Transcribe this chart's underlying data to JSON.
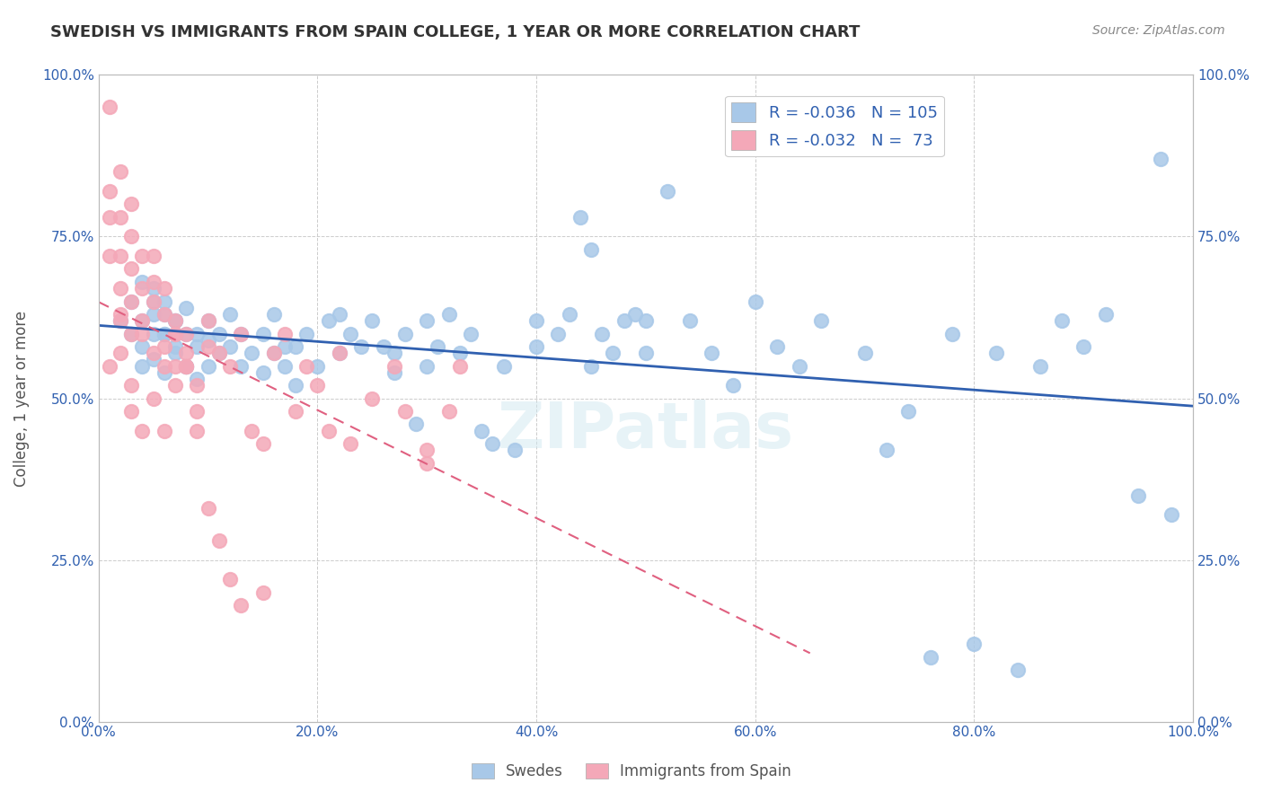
{
  "title": "SWEDISH VS IMMIGRANTS FROM SPAIN COLLEGE, 1 YEAR OR MORE CORRELATION CHART",
  "source": "Source: ZipAtlas.com",
  "ylabel": "College, 1 year or more",
  "xlabel": "",
  "xlim": [
    0.0,
    1.0
  ],
  "ylim": [
    0.0,
    1.0
  ],
  "xticks": [
    0.0,
    0.2,
    0.4,
    0.6,
    0.8,
    1.0
  ],
  "yticks": [
    0.0,
    0.25,
    0.5,
    0.75,
    1.0
  ],
  "xticklabels": [
    "0.0%",
    "20.0%",
    "40.0%",
    "60.0%",
    "80.0%",
    "100.0%"
  ],
  "yticklabels": [
    "0.0%",
    "25.0%",
    "50.0%",
    "75.0%",
    "100.0%"
  ],
  "right_yticklabels": [
    "0.0%",
    "25.0%",
    "50.0%",
    "75.0%",
    "100.0%"
  ],
  "swedes_color": "#a8c8e8",
  "spain_color": "#f4a8b8",
  "swedes_line_color": "#3060b0",
  "spain_line_color": "#e06080",
  "legend_R_swedes": "R = -0.036",
  "legend_N_swedes": "N = 105",
  "legend_R_spain": "R = -0.032",
  "legend_N_spain": "N =  73",
  "watermark": "ZIPatlas",
  "swedes_x": [
    0.02,
    0.03,
    0.03,
    0.04,
    0.04,
    0.04,
    0.04,
    0.05,
    0.05,
    0.05,
    0.06,
    0.06,
    0.06,
    0.07,
    0.07,
    0.08,
    0.08,
    0.08,
    0.09,
    0.09,
    0.1,
    0.1,
    0.1,
    0.11,
    0.11,
    0.12,
    0.12,
    0.13,
    0.13,
    0.14,
    0.15,
    0.15,
    0.16,
    0.16,
    0.17,
    0.17,
    0.18,
    0.18,
    0.19,
    0.2,
    0.21,
    0.22,
    0.22,
    0.23,
    0.24,
    0.25,
    0.26,
    0.27,
    0.27,
    0.28,
    0.29,
    0.3,
    0.3,
    0.31,
    0.32,
    0.33,
    0.34,
    0.35,
    0.36,
    0.37,
    0.38,
    0.4,
    0.4,
    0.42,
    0.43,
    0.44,
    0.45,
    0.45,
    0.46,
    0.47,
    0.48,
    0.49,
    0.5,
    0.5,
    0.52,
    0.54,
    0.56,
    0.58,
    0.6,
    0.62,
    0.64,
    0.66,
    0.7,
    0.72,
    0.74,
    0.76,
    0.78,
    0.8,
    0.82,
    0.84,
    0.86,
    0.88,
    0.9,
    0.92,
    0.95,
    0.97,
    0.98,
    0.05,
    0.05,
    0.06,
    0.06,
    0.07,
    0.07,
    0.08,
    0.09
  ],
  "swedes_y": [
    0.62,
    0.6,
    0.65,
    0.58,
    0.62,
    0.55,
    0.68,
    0.6,
    0.56,
    0.63,
    0.54,
    0.6,
    0.65,
    0.57,
    0.62,
    0.55,
    0.6,
    0.64,
    0.58,
    0.53,
    0.59,
    0.62,
    0.55,
    0.6,
    0.57,
    0.63,
    0.58,
    0.55,
    0.6,
    0.57,
    0.54,
    0.6,
    0.57,
    0.63,
    0.58,
    0.55,
    0.52,
    0.58,
    0.6,
    0.55,
    0.62,
    0.57,
    0.63,
    0.6,
    0.58,
    0.62,
    0.58,
    0.57,
    0.54,
    0.6,
    0.46,
    0.55,
    0.62,
    0.58,
    0.63,
    0.57,
    0.6,
    0.45,
    0.43,
    0.55,
    0.42,
    0.58,
    0.62,
    0.6,
    0.63,
    0.78,
    0.73,
    0.55,
    0.6,
    0.57,
    0.62,
    0.63,
    0.62,
    0.57,
    0.82,
    0.62,
    0.57,
    0.52,
    0.65,
    0.58,
    0.55,
    0.62,
    0.57,
    0.42,
    0.48,
    0.1,
    0.6,
    0.12,
    0.57,
    0.08,
    0.55,
    0.62,
    0.58,
    0.63,
    0.35,
    0.87,
    0.32,
    0.67,
    0.65,
    0.63,
    0.6,
    0.58,
    0.62,
    0.55,
    0.6
  ],
  "spain_x": [
    0.01,
    0.01,
    0.01,
    0.01,
    0.02,
    0.02,
    0.02,
    0.02,
    0.02,
    0.03,
    0.03,
    0.03,
    0.03,
    0.03,
    0.04,
    0.04,
    0.04,
    0.05,
    0.05,
    0.05,
    0.06,
    0.06,
    0.06,
    0.07,
    0.07,
    0.07,
    0.08,
    0.08,
    0.08,
    0.09,
    0.09,
    0.1,
    0.1,
    0.11,
    0.12,
    0.13,
    0.14,
    0.15,
    0.16,
    0.17,
    0.18,
    0.19,
    0.2,
    0.21,
    0.22,
    0.23,
    0.25,
    0.27,
    0.28,
    0.3,
    0.3,
    0.32,
    0.33,
    0.01,
    0.02,
    0.02,
    0.03,
    0.03,
    0.04,
    0.04,
    0.05,
    0.05,
    0.06,
    0.06,
    0.07,
    0.07,
    0.08,
    0.09,
    0.1,
    0.11,
    0.12,
    0.13,
    0.15
  ],
  "spain_y": [
    0.95,
    0.82,
    0.78,
    0.72,
    0.85,
    0.78,
    0.72,
    0.67,
    0.62,
    0.8,
    0.75,
    0.7,
    0.65,
    0.6,
    0.72,
    0.67,
    0.62,
    0.65,
    0.68,
    0.72,
    0.63,
    0.67,
    0.58,
    0.6,
    0.55,
    0.62,
    0.57,
    0.6,
    0.55,
    0.45,
    0.52,
    0.58,
    0.62,
    0.57,
    0.55,
    0.6,
    0.45,
    0.43,
    0.57,
    0.6,
    0.48,
    0.55,
    0.52,
    0.45,
    0.57,
    0.43,
    0.5,
    0.55,
    0.48,
    0.42,
    0.4,
    0.48,
    0.55,
    0.55,
    0.63,
    0.57,
    0.52,
    0.48,
    0.45,
    0.6,
    0.57,
    0.5,
    0.45,
    0.55,
    0.52,
    0.6,
    0.55,
    0.48,
    0.33,
    0.28,
    0.22,
    0.18,
    0.2
  ]
}
